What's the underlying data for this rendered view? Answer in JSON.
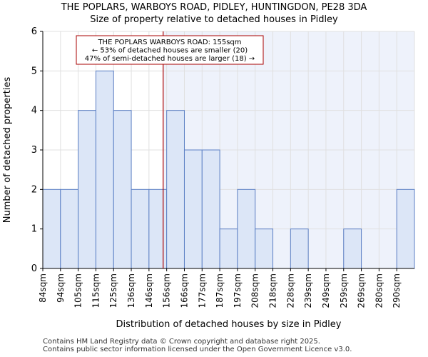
{
  "chart_data": {
    "type": "bar",
    "title": "THE POPLARS, WARBOYS ROAD, PIDLEY, HUNTINGDON, PE28 3DA",
    "subtitle": "Size of property relative to detached houses in Pidley",
    "xlabel": "Distribution of detached houses by size in Pidley",
    "ylabel": "Number of detached properties",
    "categories": [
      "84sqm",
      "94sqm",
      "105sqm",
      "115sqm",
      "125sqm",
      "136sqm",
      "146sqm",
      "156sqm",
      "166sqm",
      "177sqm",
      "187sqm",
      "197sqm",
      "208sqm",
      "218sqm",
      "228sqm",
      "239sqm",
      "249sqm",
      "259sqm",
      "269sqm",
      "280sqm",
      "290sqm"
    ],
    "values": [
      2,
      2,
      4,
      5,
      4,
      2,
      2,
      4,
      3,
      3,
      1,
      2,
      1,
      0,
      1,
      0,
      0,
      1,
      0,
      0,
      2
    ],
    "ylim": [
      0,
      6
    ],
    "yticks": [
      0,
      1,
      2,
      3,
      4,
      5,
      6
    ],
    "grid": true,
    "marker": {
      "value_index": 6.8,
      "color": "#aa0000"
    },
    "annotation": {
      "lines": [
        "THE POPLARS WARBOYS ROAD: 155sqm",
        "← 53% of detached houses are smaller (20)",
        "47% of semi-detached houses are larger (18) →"
      ]
    },
    "colors": {
      "bar_fill": "#dce6f7",
      "bar_stroke": "#5b7fc4",
      "highlight_bg": "#eef2fb",
      "grid": "#e0e0e0"
    }
  },
  "footer": {
    "line1": "Contains HM Land Registry data © Crown copyright and database right 2025.",
    "line2": "Contains public sector information licensed under the Open Government Licence v3.0."
  }
}
